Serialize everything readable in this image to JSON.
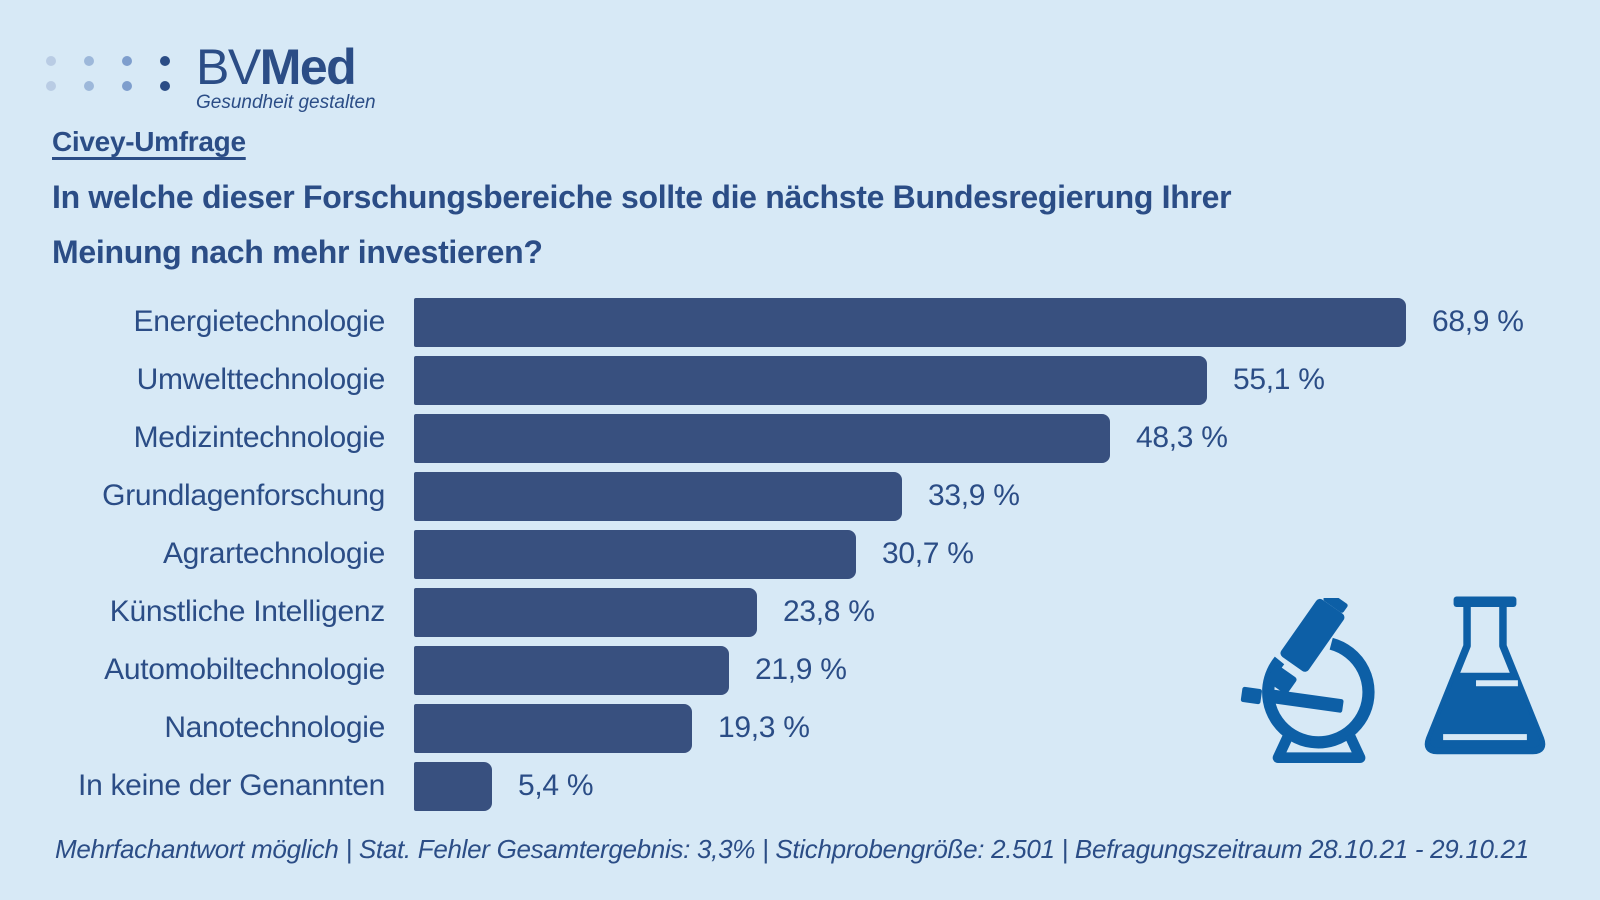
{
  "logo": {
    "dot_colors": [
      "#b9cce4",
      "#9db8da",
      "#7e9ecd",
      "#2b4d86"
    ],
    "name_regular": "BV",
    "name_bold": "Med",
    "tagline": "Gesundheit gestalten"
  },
  "kicker": "Civey-Umfrage",
  "title": "In welche dieser Forschungsbereiche sollte die nächste Bundesregierung Ihrer Meinung nach mehr investieren?",
  "footer": "Mehrfachantwort möglich | Stat. Fehler Gesamtergebnis: 3,3% | Stichprobengröße: 2.501 | Befragungszeitraum 28.10.21 - 29.10.21",
  "colors": {
    "background": "#d7e9f6",
    "bar": "#38507f",
    "text": "#2b4d86",
    "icon": "#0d5fa6"
  },
  "chart_data": {
    "type": "bar",
    "orientation": "horizontal",
    "title": "In welche dieser Forschungsbereiche sollte die nächste Bundesregierung Ihrer Meinung nach mehr investieren?",
    "categories": [
      "Energietechnologie",
      "Umwelttechnologie",
      "Medizintechnologie",
      "Grundlagenforschung",
      "Agrartechnologie",
      "Künstliche Intelligenz",
      "Automobiltechnologie",
      "Nanotechnologie",
      "In keine der Genannten"
    ],
    "values": [
      68.9,
      55.1,
      48.3,
      33.9,
      30.7,
      23.8,
      21.9,
      19.3,
      5.4
    ],
    "value_labels": [
      "68,9 %",
      "55,1 %",
      "48,3 %",
      "33,9 %",
      "30,7 %",
      "23,8 %",
      "21,9 %",
      "19,3 %",
      "5,4 %"
    ],
    "unit": "%",
    "xlim": [
      0,
      70
    ],
    "grid": false,
    "legend": false
  }
}
